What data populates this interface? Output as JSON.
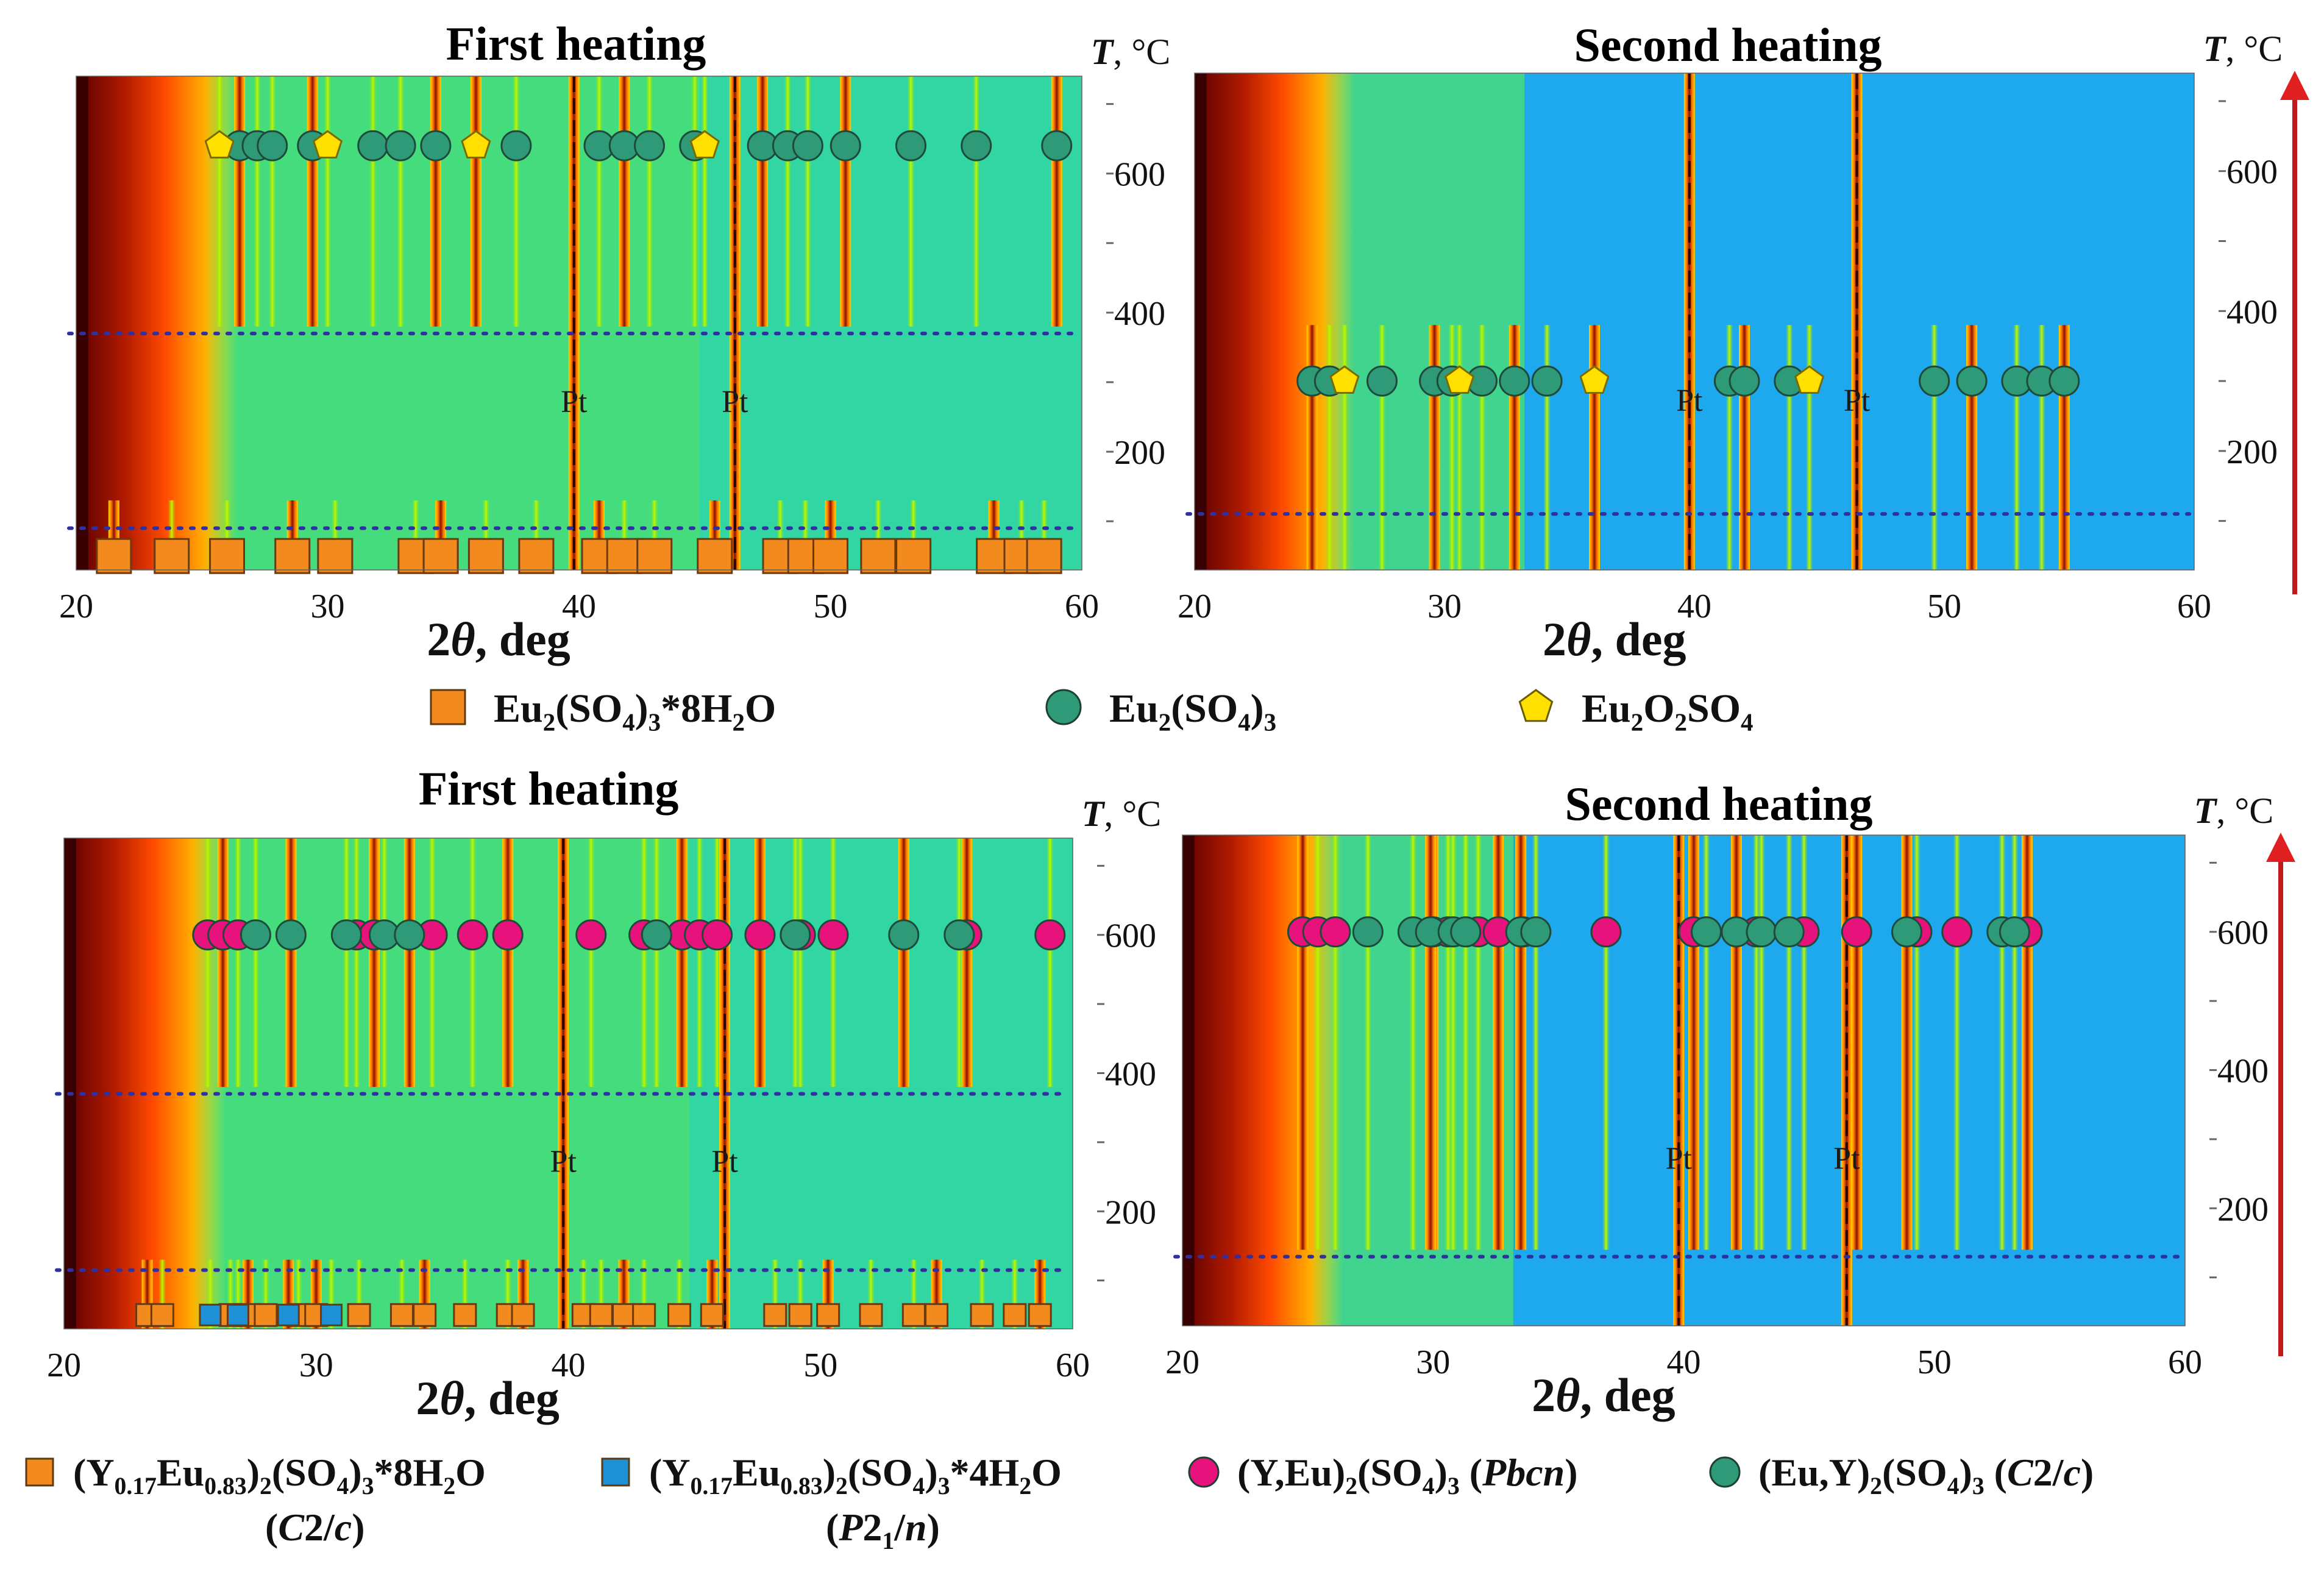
{
  "figure": {
    "description_free": true,
    "xlabel_prefix": "2",
    "xlabel_theta": "θ",
    "xlabel_suffix": ", deg",
    "ylabel_T": "T",
    "ylabel_unit": ", °C",
    "pt_label": "Pt"
  },
  "legend_top": [
    {
      "id": "eu_hydrate",
      "marker": "square",
      "color": "#f28a1e",
      "parts": [
        [
          "Eu",
          "n"
        ],
        [
          "2",
          "sub"
        ],
        [
          "(SO",
          "n"
        ],
        [
          "4",
          "sub"
        ],
        [
          ")",
          "n"
        ],
        [
          "3",
          "sub"
        ],
        [
          "*8H",
          "n"
        ],
        [
          "2",
          "sub"
        ],
        [
          "O",
          "n"
        ]
      ]
    },
    {
      "id": "eu_anhydrous",
      "marker": "circle",
      "color": "#2f9a78",
      "parts": [
        [
          "Eu",
          "n"
        ],
        [
          "2",
          "sub"
        ],
        [
          "(SO",
          "n"
        ],
        [
          "4",
          "sub"
        ],
        [
          ")",
          "n"
        ],
        [
          "3",
          "sub"
        ]
      ]
    },
    {
      "id": "eu_oxysulfate",
      "marker": "pentagon",
      "color": "#ffe000",
      "parts": [
        [
          "Eu",
          "n"
        ],
        [
          "2",
          "sub"
        ],
        [
          "O",
          "n"
        ],
        [
          "2",
          "sub"
        ],
        [
          "SO",
          "n"
        ],
        [
          "4",
          "sub"
        ]
      ]
    }
  ],
  "legend_bottom": [
    {
      "id": "yeu_8h2o",
      "marker": "square",
      "color": "#f28a1e",
      "parts": [
        [
          "(Y",
          "n"
        ],
        [
          "0.17",
          "sub"
        ],
        [
          "Eu",
          "n"
        ],
        [
          "0.83",
          "sub"
        ],
        [
          ")",
          "n"
        ],
        [
          "2",
          "sub"
        ],
        [
          "(SO",
          "n"
        ],
        [
          "4",
          "sub"
        ],
        [
          ")",
          "n"
        ],
        [
          "3",
          "sub"
        ],
        [
          "*8H",
          "n"
        ],
        [
          "2",
          "sub"
        ],
        [
          "O",
          "n"
        ]
      ],
      "sub_parts": [
        [
          "(",
          "n"
        ],
        [
          "C",
          "i"
        ],
        [
          "2/",
          "n"
        ],
        [
          "c",
          "i"
        ],
        [
          ")",
          "n"
        ]
      ]
    },
    {
      "id": "yeu_4h2o",
      "marker": "square",
      "color": "#1e90d6",
      "parts": [
        [
          "(Y",
          "n"
        ],
        [
          "0.17",
          "sub"
        ],
        [
          "Eu",
          "n"
        ],
        [
          "0.83",
          "sub"
        ],
        [
          ")",
          "n"
        ],
        [
          "2",
          "sub"
        ],
        [
          "(SO",
          "n"
        ],
        [
          "4",
          "sub"
        ],
        [
          ")",
          "n"
        ],
        [
          "3",
          "sub"
        ],
        [
          "*4H",
          "n"
        ],
        [
          "2",
          "sub"
        ],
        [
          "O",
          "n"
        ]
      ],
      "sub_parts": [
        [
          "(",
          "n"
        ],
        [
          "P",
          "i"
        ],
        [
          "2",
          "n"
        ],
        [
          "1",
          "sub"
        ],
        [
          "/",
          "n"
        ],
        [
          "n",
          "i"
        ],
        [
          ")",
          "n"
        ]
      ]
    },
    {
      "id": "yeu_pbcn",
      "marker": "circle",
      "color": "#e8127c",
      "parts": [
        [
          "(Y,Eu)",
          "n"
        ],
        [
          "2",
          "sub"
        ],
        [
          "(SO",
          "n"
        ],
        [
          "4",
          "sub"
        ],
        [
          ")",
          "n"
        ],
        [
          "3",
          "sub"
        ],
        [
          " (",
          "n"
        ],
        [
          "Pbcn",
          "i"
        ],
        [
          ")",
          "n"
        ]
      ]
    },
    {
      "id": "euy_c2c",
      "marker": "circle",
      "color": "#2f9a78",
      "parts": [
        [
          "(Eu,Y)",
          "n"
        ],
        [
          "2",
          "sub"
        ],
        [
          "(SO",
          "n"
        ],
        [
          "4",
          "sub"
        ],
        [
          ")",
          "n"
        ],
        [
          "3",
          "sub"
        ],
        [
          " (",
          "n"
        ],
        [
          "C",
          "i"
        ],
        [
          "2/",
          "n"
        ],
        [
          "c",
          "i"
        ],
        [
          ")",
          "n"
        ]
      ]
    }
  ],
  "chart_data": [
    {
      "type": "heatmap",
      "title": "First heating",
      "panel": "top-left",
      "xlim": [
        20,
        60
      ],
      "xticks": [
        20,
        30,
        40,
        50,
        60
      ],
      "ylim": [
        30,
        740
      ],
      "yticks": [
        200,
        400,
        600
      ],
      "xlabel": "2θ, deg",
      "ylabel": "T, °C",
      "pt_reflections": [
        39.8,
        46.2
      ],
      "transition_temperatures": [
        370,
        90
      ],
      "series": [
        {
          "phase": "eu_hydrate",
          "T": 50,
          "x": [
            21.5,
            23.8,
            26.0,
            28.6,
            30.3,
            33.5,
            34.5,
            36.3,
            38.3,
            40.8,
            41.8,
            43.0,
            45.4,
            48.0,
            49.0,
            50.0,
            51.9,
            53.3,
            56.5,
            57.6,
            58.5
          ]
        },
        {
          "phase": "eu_anhydrous",
          "T": 640,
          "x": [
            26.5,
            27.2,
            27.8,
            29.4,
            31.8,
            32.9,
            34.3,
            37.5,
            40.8,
            41.8,
            42.8,
            44.6,
            47.3,
            48.3,
            49.1,
            50.6,
            53.2,
            55.8,
            59.0
          ]
        },
        {
          "phase": "eu_oxysulfate",
          "T": 640,
          "x": [
            25.7,
            30.0,
            35.9,
            45.0
          ]
        }
      ]
    },
    {
      "type": "heatmap",
      "title": "Second heating",
      "panel": "top-right",
      "xlim": [
        20,
        60
      ],
      "xticks": [
        20,
        30,
        40,
        50,
        60
      ],
      "ylim": [
        30,
        740
      ],
      "yticks": [
        200,
        400,
        600
      ],
      "xlabel": "2θ, deg",
      "ylabel": "T, °C",
      "pt_reflections": [
        39.8,
        46.5
      ],
      "transition_temperatures": [
        110
      ],
      "series": [
        {
          "phase": "eu_anhydrous",
          "T": 300,
          "x": [
            24.7,
            25.4,
            27.5,
            29.6,
            30.3,
            31.5,
            32.8,
            34.1,
            41.4,
            42.0,
            43.8,
            49.6,
            51.1,
            52.9,
            53.9,
            54.8
          ]
        },
        {
          "phase": "eu_oxysulfate",
          "T": 300,
          "x": [
            26.0,
            30.6,
            36.0,
            44.6
          ]
        }
      ]
    },
    {
      "type": "heatmap",
      "title": "First heating",
      "panel": "bottom-left",
      "xlim": [
        20,
        60
      ],
      "xticks": [
        20,
        30,
        40,
        50,
        60
      ],
      "ylim": [
        30,
        740
      ],
      "yticks": [
        200,
        400,
        600
      ],
      "xlabel": "2θ, deg",
      "ylabel": "T, °C",
      "pt_reflections": [
        39.8,
        46.2
      ],
      "transition_temperatures": [
        370,
        115
      ],
      "series": [
        {
          "phase": "yeu_8h2o",
          "T": 50,
          "x": [
            23.3,
            23.9,
            26.6,
            27.3,
            28.0,
            29.3,
            30.0,
            31.7,
            33.4,
            34.3,
            35.9,
            37.6,
            38.2,
            40.6,
            41.3,
            42.2,
            43.0,
            44.4,
            45.7,
            48.2,
            49.2,
            50.3,
            52.0,
            53.7,
            54.6,
            56.4,
            57.7,
            58.7
          ]
        },
        {
          "phase": "yeu_4h2o",
          "T": 50,
          "x": [
            25.8,
            26.9,
            28.9,
            30.6
          ]
        },
        {
          "phase": "yeu_pbcn",
          "T": 600,
          "x": [
            25.7,
            26.3,
            26.9,
            31.6,
            32.3,
            34.6,
            36.2,
            37.6,
            40.9,
            43.0,
            44.5,
            45.2,
            45.9,
            47.6,
            49.2,
            50.5,
            55.8,
            59.1
          ]
        },
        {
          "phase": "euy_c2c",
          "T": 600,
          "x": [
            27.6,
            29.0,
            31.2,
            32.7,
            33.7,
            43.5,
            49.0,
            53.3,
            55.5
          ]
        }
      ]
    },
    {
      "type": "heatmap",
      "title": "Second heating",
      "panel": "bottom-right",
      "xlim": [
        20,
        60
      ],
      "xticks": [
        20,
        30,
        40,
        50,
        60
      ],
      "ylim": [
        30,
        740
      ],
      "yticks": [
        200,
        400,
        600
      ],
      "xlabel": "2θ, deg",
      "ylabel": "T, °C",
      "pt_reflections": [
        39.8,
        46.5
      ],
      "transition_temperatures": [
        130
      ],
      "series": [
        {
          "phase": "yeu_pbcn",
          "T": 600,
          "x": [
            24.8,
            25.4,
            26.1,
            30.0,
            30.6,
            31.8,
            32.6,
            33.6,
            36.9,
            40.4,
            42.9,
            44.8,
            46.9,
            49.3,
            50.9,
            53.7
          ]
        },
        {
          "phase": "euy_c2c",
          "T": 600,
          "x": [
            27.4,
            29.2,
            29.9,
            30.8,
            31.3,
            33.5,
            34.1,
            40.9,
            42.1,
            43.1,
            44.2,
            48.9,
            52.7,
            53.2
          ]
        }
      ]
    }
  ]
}
